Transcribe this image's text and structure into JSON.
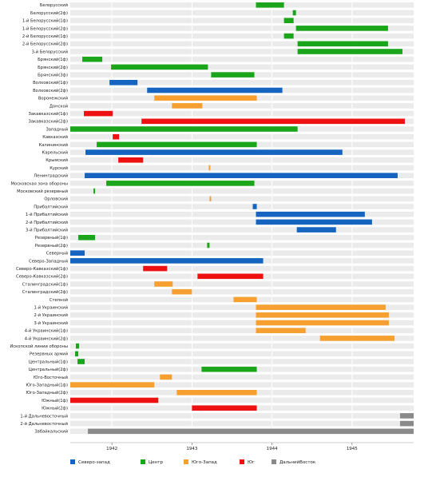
{
  "chart_data": {
    "type": "bar",
    "orientation": "horizontal-timeline",
    "x_unit": "year",
    "xlim": [
      1941.48,
      1945.77
    ],
    "xticks": [
      {
        "value": 1942,
        "label": "1942"
      },
      {
        "value": 1943,
        "label": "1943"
      },
      {
        "value": 1944,
        "label": "1944"
      },
      {
        "value": 1945,
        "label": "1945"
      }
    ],
    "grid": true,
    "legend_position": "bottom",
    "groups": [
      {
        "key": "nw",
        "label": "Северо-запад",
        "color": "#1565c0"
      },
      {
        "key": "c",
        "label": "Центр",
        "color": "#1aa51a"
      },
      {
        "key": "sw",
        "label": "Юго-Запад",
        "color": "#f5a030"
      },
      {
        "key": "s",
        "label": "Юг",
        "color": "#ee1111"
      },
      {
        "key": "fe",
        "label": "ДальнийВосток",
        "color": "#8a8a8a"
      }
    ],
    "fronts": [
      {
        "name": "Белорусский",
        "group": "c",
        "periods": [
          [
            1943.8,
            1944.15
          ]
        ]
      },
      {
        "name": "Белорусский(2ф)",
        "group": "c",
        "periods": [
          [
            1944.26,
            1944.3
          ]
        ]
      },
      {
        "name": "1-й Белорусский(1ф)",
        "group": "c",
        "periods": [
          [
            1944.15,
            1944.27
          ]
        ]
      },
      {
        "name": "1-й Белорусский(2ф)",
        "group": "c",
        "periods": [
          [
            1944.3,
            1945.45
          ]
        ]
      },
      {
        "name": "2-й Белорусский(1ф)",
        "group": "c",
        "periods": [
          [
            1944.15,
            1944.27
          ]
        ]
      },
      {
        "name": "2-й Белорусский(2ф)",
        "group": "c",
        "periods": [
          [
            1944.32,
            1945.45
          ]
        ]
      },
      {
        "name": "3-й Белорусский",
        "group": "c",
        "periods": [
          [
            1944.32,
            1945.63
          ]
        ]
      },
      {
        "name": "Брянский(1ф)",
        "group": "c",
        "periods": [
          [
            1941.63,
            1941.88
          ]
        ]
      },
      {
        "name": "Брянский(2ф)",
        "group": "c",
        "periods": [
          [
            1941.99,
            1943.2
          ]
        ]
      },
      {
        "name": "Брянский(3ф)",
        "group": "c",
        "periods": [
          [
            1943.24,
            1943.78
          ]
        ]
      },
      {
        "name": "Волховский(1ф)",
        "group": "nw",
        "periods": [
          [
            1941.97,
            1942.32
          ]
        ]
      },
      {
        "name": "Волховский(2ф)",
        "group": "nw",
        "periods": [
          [
            1942.44,
            1944.13
          ]
        ]
      },
      {
        "name": "Воронежский",
        "group": "sw",
        "periods": [
          [
            1942.53,
            1943.81
          ]
        ]
      },
      {
        "name": "Донской",
        "group": "sw",
        "periods": [
          [
            1942.75,
            1943.13
          ]
        ]
      },
      {
        "name": "Закавказский(1ф)",
        "group": "s",
        "periods": [
          [
            1941.65,
            1942.01
          ]
        ]
      },
      {
        "name": "Закавказский(2ф)",
        "group": "s",
        "periods": [
          [
            1942.37,
            1945.66
          ]
        ]
      },
      {
        "name": "Западный",
        "group": "c",
        "periods": [
          [
            1941.48,
            1944.32
          ]
        ]
      },
      {
        "name": "Кавказский",
        "group": "s",
        "periods": [
          [
            1942.01,
            1942.09
          ]
        ]
      },
      {
        "name": "Калининский",
        "group": "c",
        "periods": [
          [
            1941.81,
            1943.81
          ]
        ]
      },
      {
        "name": "Карельский",
        "group": "nw",
        "periods": [
          [
            1941.67,
            1944.88
          ]
        ]
      },
      {
        "name": "Крымский",
        "group": "s",
        "periods": [
          [
            1942.08,
            1942.39
          ]
        ]
      },
      {
        "name": "Курский",
        "group": "sw",
        "periods": [
          [
            1943.21,
            1943.23
          ]
        ]
      },
      {
        "name": "Ленинградский",
        "group": "nw",
        "periods": [
          [
            1941.66,
            1945.57
          ]
        ]
      },
      {
        "name": "Московская зона обороны",
        "group": "c",
        "periods": [
          [
            1941.93,
            1943.78
          ]
        ]
      },
      {
        "name": "Московский резервный",
        "group": "c",
        "periods": [
          [
            1941.77,
            1941.79
          ]
        ]
      },
      {
        "name": "Орловский",
        "group": "sw",
        "periods": [
          [
            1943.22,
            1943.24
          ]
        ]
      },
      {
        "name": "Прибалтийский",
        "group": "nw",
        "periods": [
          [
            1943.76,
            1943.81
          ]
        ]
      },
      {
        "name": "1-й Прибалтийский",
        "group": "nw",
        "periods": [
          [
            1943.8,
            1945.16
          ]
        ]
      },
      {
        "name": "2-й Прибалтийский",
        "group": "nw",
        "periods": [
          [
            1943.8,
            1945.25
          ]
        ]
      },
      {
        "name": "3-й Прибалтийский",
        "group": "nw",
        "periods": [
          [
            1944.31,
            1944.8
          ]
        ]
      },
      {
        "name": "Резервный(1ф)",
        "group": "c",
        "periods": [
          [
            1941.58,
            1941.79
          ]
        ]
      },
      {
        "name": "Резервный(2ф)",
        "group": "c",
        "periods": [
          [
            1943.19,
            1943.22
          ]
        ]
      },
      {
        "name": "Северный",
        "group": "nw",
        "periods": [
          [
            1941.48,
            1941.66
          ]
        ]
      },
      {
        "name": "Северо-Западный",
        "group": "nw",
        "periods": [
          [
            1941.48,
            1943.89
          ]
        ]
      },
      {
        "name": "Северо-Кавказский(1ф)",
        "group": "s",
        "periods": [
          [
            1942.39,
            1942.69
          ]
        ]
      },
      {
        "name": "Северо-Кавказский(2ф)",
        "group": "s",
        "periods": [
          [
            1943.07,
            1943.89
          ]
        ]
      },
      {
        "name": "Сталинградский(1ф)",
        "group": "sw",
        "periods": [
          [
            1942.53,
            1942.76
          ]
        ]
      },
      {
        "name": "Сталинградский(2ф)",
        "group": "sw",
        "periods": [
          [
            1942.75,
            1943.0
          ]
        ]
      },
      {
        "name": "Степной",
        "group": "sw",
        "periods": [
          [
            1943.52,
            1943.81
          ]
        ]
      },
      {
        "name": "1-й Украинский",
        "group": "sw",
        "periods": [
          [
            1943.8,
            1945.42
          ]
        ]
      },
      {
        "name": "2-й Украинский",
        "group": "sw",
        "periods": [
          [
            1943.8,
            1945.46
          ]
        ]
      },
      {
        "name": "3-й Украинский",
        "group": "sw",
        "periods": [
          [
            1943.8,
            1945.46
          ]
        ]
      },
      {
        "name": "4-й Украинский(1ф)",
        "group": "sw",
        "periods": [
          [
            1943.8,
            1944.42
          ]
        ]
      },
      {
        "name": "4-й Украинский(2ф)",
        "group": "sw",
        "periods": [
          [
            1944.6,
            1945.53
          ]
        ]
      },
      {
        "name": "Ископской линии обороны",
        "group": "c",
        "periods": [
          [
            1941.55,
            1941.59
          ]
        ]
      },
      {
        "name": "Резервных армий",
        "group": "c",
        "periods": [
          [
            1941.54,
            1941.58
          ]
        ]
      },
      {
        "name": "Центральный(1ф)",
        "group": "c",
        "periods": [
          [
            1941.57,
            1941.66
          ]
        ]
      },
      {
        "name": "Центральный(2ф)",
        "group": "c",
        "periods": [
          [
            1943.12,
            1943.81
          ]
        ]
      },
      {
        "name": "Юго-Восточный",
        "group": "sw",
        "periods": [
          [
            1942.6,
            1942.75
          ]
        ]
      },
      {
        "name": "Юго-Западный(1ф)",
        "group": "sw",
        "periods": [
          [
            1941.48,
            1942.53
          ]
        ]
      },
      {
        "name": "Юго-Западный(2ф)",
        "group": "sw",
        "periods": [
          [
            1942.81,
            1943.81
          ]
        ]
      },
      {
        "name": "Южный(1ф)",
        "group": "s",
        "periods": [
          [
            1941.48,
            1942.58
          ]
        ]
      },
      {
        "name": "Южный(2ф)",
        "group": "s",
        "periods": [
          [
            1943.0,
            1943.81
          ]
        ]
      },
      {
        "name": "1-й Дальневосточный",
        "group": "fe",
        "periods": [
          [
            1945.6,
            1945.77
          ]
        ]
      },
      {
        "name": "2-й Дальневосточный",
        "group": "fe",
        "periods": [
          [
            1945.6,
            1945.77
          ]
        ]
      },
      {
        "name": "Забайкальский",
        "group": "fe",
        "periods": [
          [
            1941.7,
            1945.77
          ]
        ]
      }
    ]
  }
}
